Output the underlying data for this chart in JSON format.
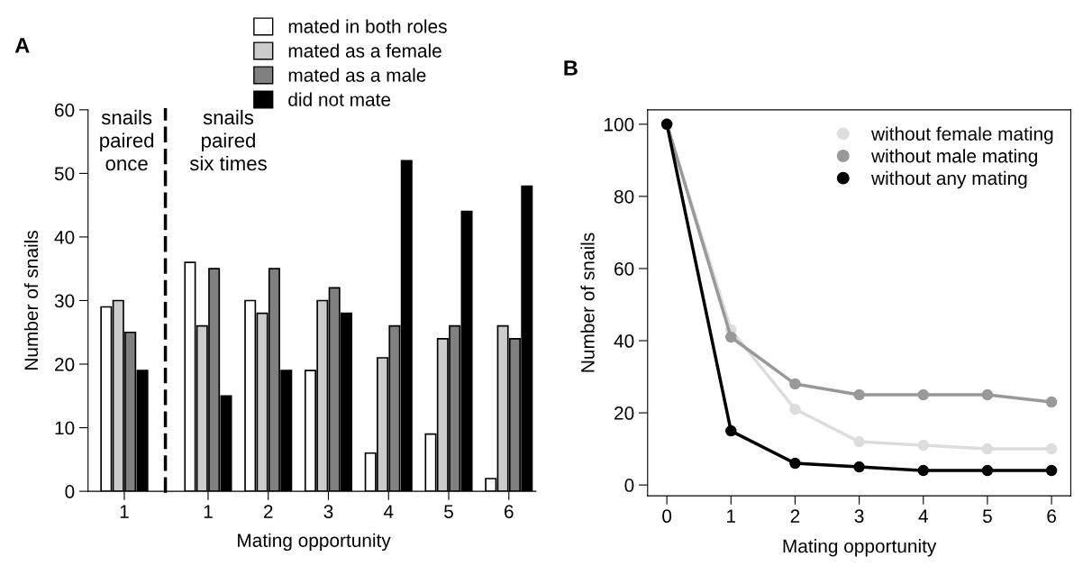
{
  "chart_data": [
    {
      "type": "bar",
      "title": "A",
      "ylabel": "Number of snails",
      "categories": [
        "1"
      ],
      "series": [
        {
          "color": "#ffffff",
          "values": [
            29
          ]
        },
        {
          "color": "#cccccc",
          "values": [
            30
          ]
        },
        {
          "color": "#808080",
          "values": [
            25
          ]
        },
        {
          "color": "#000000",
          "values": [
            19
          ]
        }
      ],
      "ylim": [
        0,
        60
      ],
      "yticks": [
        0,
        10,
        20,
        30,
        40,
        50,
        60
      ],
      "annotations": [
        "snails\npaired\nonce"
      ],
      "grid": false
    },
    {
      "type": "bar",
      "xlabel": "Mating opportunity",
      "categories": [
        "1",
        "2",
        "3",
        "4",
        "5",
        "6"
      ],
      "series": [
        {
          "name": "mated in both roles",
          "color": "#ffffff",
          "values": [
            36,
            30,
            19,
            6,
            9,
            2
          ]
        },
        {
          "name": "mated as a female",
          "color": "#cccccc",
          "values": [
            26,
            28,
            30,
            21,
            24,
            26
          ]
        },
        {
          "name": "mated as a male",
          "color": "#808080",
          "values": [
            35,
            35,
            32,
            26,
            26,
            24
          ]
        },
        {
          "name": "did not mate",
          "color": "#000000",
          "values": [
            15,
            19,
            28,
            52,
            44,
            48
          ]
        }
      ],
      "ylim": [
        0,
        60
      ],
      "tick_labels": "x",
      "annotations": [
        "snails\npaired\nsix times"
      ],
      "legend": "top",
      "grid": false
    },
    {
      "type": "line",
      "title": "B",
      "xlabel": "Mating opportunity",
      "ylabel": "Number of snails",
      "x": [
        0,
        1,
        2,
        3,
        4,
        5,
        6
      ],
      "series": [
        {
          "name": "without female mating",
          "color": "#dddddd",
          "values": [
            100,
            43,
            21,
            12,
            11,
            10,
            10
          ]
        },
        {
          "name": "without male mating",
          "color": "#999999",
          "values": [
            100,
            41,
            28,
            25,
            25,
            25,
            23
          ]
        },
        {
          "name": "without any mating",
          "color": "#000000",
          "values": [
            100,
            15,
            6,
            5,
            4,
            4,
            4
          ]
        }
      ],
      "xlim": [
        -0.3,
        6.3
      ],
      "xticks": [
        0,
        1,
        2,
        3,
        4,
        5,
        6
      ],
      "ylim": [
        -3,
        104
      ],
      "yticks": [
        0,
        20,
        40,
        60,
        80,
        100
      ],
      "marker": "circle",
      "line_style": "solid",
      "legend": "top right",
      "grid": false
    }
  ]
}
